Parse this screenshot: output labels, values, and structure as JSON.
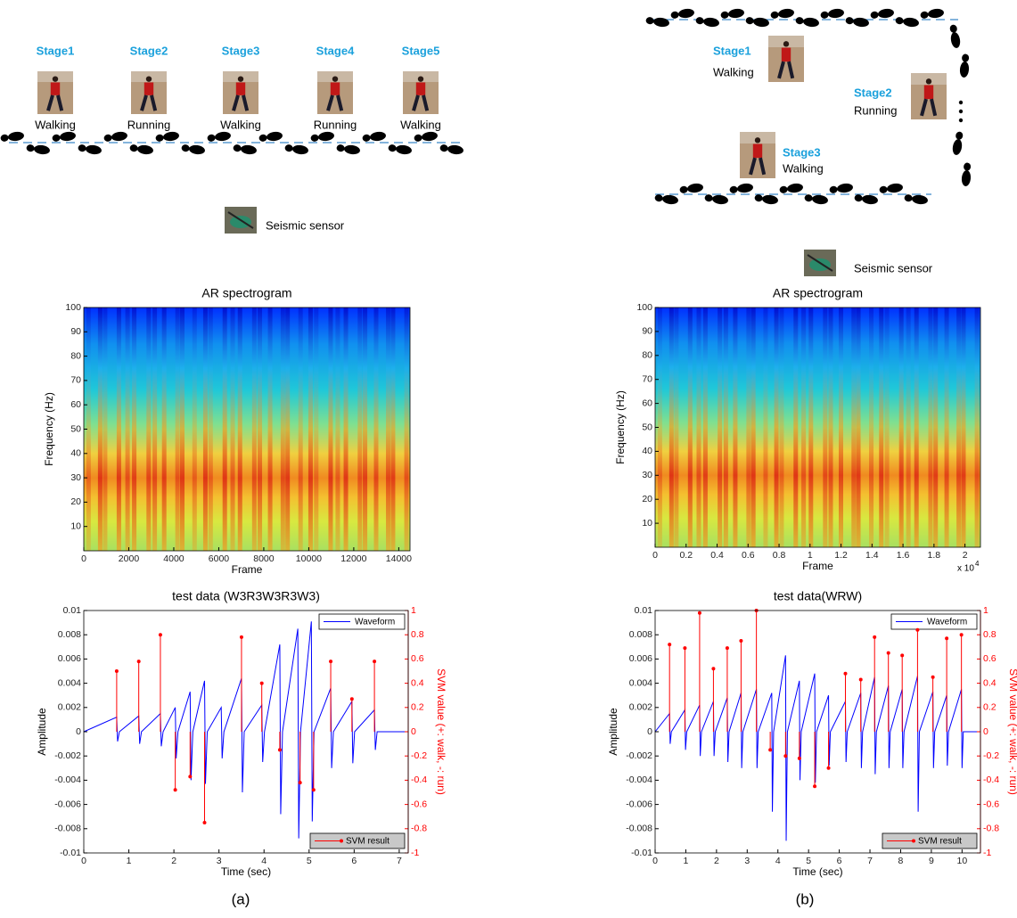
{
  "panels": [
    {
      "caption": "(a)",
      "sensor": "Seismic sensor",
      "stages": [
        {
          "label": "Stage1",
          "activity": "Walking"
        },
        {
          "label": "Stage2",
          "activity": "Running"
        },
        {
          "label": "Stage3",
          "activity": "Walking"
        },
        {
          "label": "Stage4",
          "activity": "Running"
        },
        {
          "label": "Stage5",
          "activity": "Walking"
        }
      ]
    },
    {
      "caption": "(b)",
      "sensor": "Seismic sensor",
      "stages": [
        {
          "label": "Stage1",
          "activity": "Walking"
        },
        {
          "label": "Stage2",
          "activity": "Running"
        },
        {
          "label": "Stage3",
          "activity": "Walking"
        }
      ]
    }
  ],
  "chart_data": [
    {
      "type": "heatmap",
      "title": "AR spectrogram",
      "x_label": "Frame",
      "y_label": "Frequency (Hz)",
      "xlim": [
        0,
        14500
      ],
      "xticks": [
        0,
        2000,
        4000,
        6000,
        8000,
        10000,
        12000,
        14000
      ],
      "ylim": [
        0,
        100
      ],
      "yticks": [
        10,
        20,
        30,
        40,
        50,
        60,
        70,
        80,
        90,
        100
      ]
    },
    {
      "type": "line",
      "title": "test data (W3R3W3R3W3)",
      "x_label": "Time (sec)",
      "y_label": "Amplitude",
      "y2_label": "SVM value (+: walk, -: run)",
      "xlim": [
        0,
        7.2
      ],
      "xticks": [
        0,
        1,
        2,
        3,
        4,
        5,
        6,
        7
      ],
      "ylim": [
        -0.01,
        0.01
      ],
      "yticks": [
        0.01,
        0.008,
        0.006,
        0.004,
        0.002,
        0,
        -0.002,
        -0.004,
        -0.006,
        -0.008,
        -0.01
      ],
      "y2lim": [
        -1,
        1
      ],
      "y2ticks": [
        1,
        0.8,
        0.6,
        0.4,
        0.2,
        0,
        -0.2,
        -0.4,
        -0.6,
        -0.8,
        -1
      ],
      "series": [
        {
          "name": "Waveform",
          "color": "#0000ff",
          "kind": "line",
          "legend": "upper right",
          "x": [
            0,
            0.73,
            0.75,
            0.79,
            1.22,
            1.24,
            1.28,
            1.7,
            1.72,
            1.76,
            2.03,
            2.05,
            2.09,
            2.36,
            2.38,
            2.42,
            2.68,
            2.7,
            2.74,
            3.05,
            3.07,
            3.11,
            3.5,
            3.52,
            3.56,
            3.95,
            3.97,
            4.01,
            4.35,
            4.37,
            4.41,
            4.75,
            4.77,
            4.81,
            5.05,
            5.07,
            5.11,
            5.48,
            5.5,
            5.54,
            5.95,
            5.97,
            6.01,
            6.45,
            6.47,
            6.51,
            7.2
          ],
          "values": [
            0,
            0.0012,
            -0.0008,
            0,
            0.0013,
            -0.001,
            0,
            0.0015,
            -0.0012,
            0,
            0.002,
            -0.0022,
            0,
            0.0033,
            -0.004,
            0,
            0.0042,
            -0.0043,
            0,
            0.002,
            -0.0022,
            0,
            0.0044,
            -0.005,
            0,
            0.0022,
            -0.0025,
            0,
            0.0072,
            -0.0068,
            0,
            0.0085,
            -0.0088,
            0,
            0.0091,
            -0.0074,
            0,
            0.0036,
            -0.003,
            0,
            0.0025,
            -0.0026,
            0,
            0.0018,
            -0.0015,
            0,
            0
          ]
        },
        {
          "name": "SVM result",
          "color": "#ff0000",
          "kind": "stem",
          "axis": "y2",
          "legend": "lower right",
          "x": [
            0.73,
            1.22,
            1.7,
            2.03,
            2.36,
            2.68,
            3.5,
            3.95,
            4.35,
            4.8,
            5.1,
            5.48,
            5.95,
            6.45
          ],
          "values": [
            0.5,
            0.58,
            0.8,
            -0.48,
            -0.37,
            -0.75,
            0.78,
            0.4,
            -0.15,
            -0.42,
            -0.48,
            0.58,
            0.27,
            0.58
          ]
        }
      ]
    },
    {
      "type": "heatmap",
      "title": "AR spectrogram",
      "x_label": "Frame",
      "y_label": "Frequency (Hz)",
      "x_multiplier": "x 10",
      "x_multiplier_exponent": "4",
      "xlim": [
        0,
        2.1
      ],
      "xticks": [
        0,
        0.2,
        0.4,
        0.6,
        0.8,
        1,
        1.2,
        1.4,
        1.6,
        1.8,
        2
      ],
      "ylim": [
        0,
        100
      ],
      "yticks": [
        10,
        20,
        30,
        40,
        50,
        60,
        70,
        80,
        90,
        100
      ]
    },
    {
      "type": "line",
      "title": "test data(WRW)",
      "x_label": "Time (sec)",
      "y_label": "Amplitude",
      "y2_label": "SVM value (+: walk, -: run)",
      "xlim": [
        0,
        10.6
      ],
      "xticks": [
        0,
        1,
        2,
        3,
        4,
        5,
        6,
        7,
        8,
        9,
        10
      ],
      "ylim": [
        -0.01,
        0.01
      ],
      "yticks": [
        0.01,
        0.008,
        0.006,
        0.004,
        0.002,
        0,
        -0.002,
        -0.004,
        -0.006,
        -0.008,
        -0.01
      ],
      "y2lim": [
        -1,
        1
      ],
      "y2ticks": [
        1,
        0.8,
        0.6,
        0.4,
        0.2,
        0,
        -0.2,
        -0.4,
        -0.6,
        -0.8,
        -1
      ],
      "series": [
        {
          "name": "Waveform",
          "color": "#0000ff",
          "kind": "line",
          "legend": "upper right",
          "x": [
            0,
            0.47,
            0.49,
            0.53,
            0.97,
            0.99,
            1.03,
            1.45,
            1.47,
            1.51,
            1.9,
            1.92,
            1.96,
            2.35,
            2.37,
            2.41,
            2.8,
            2.82,
            2.86,
            3.3,
            3.32,
            3.36,
            3.8,
            3.82,
            3.86,
            4.25,
            4.27,
            4.31,
            4.7,
            4.72,
            4.76,
            5.2,
            5.22,
            5.26,
            5.65,
            5.67,
            5.71,
            6.2,
            6.22,
            6.26,
            6.7,
            6.72,
            6.76,
            7.15,
            7.17,
            7.21,
            7.6,
            7.62,
            7.66,
            8.05,
            8.07,
            8.11,
            8.55,
            8.57,
            8.61,
            9.05,
            9.07,
            9.11,
            9.5,
            9.52,
            9.56,
            9.98,
            10,
            10.04,
            10.6
          ],
          "values": [
            0,
            0.0015,
            -0.001,
            0,
            0.0018,
            -0.0015,
            0,
            0.0022,
            -0.002,
            0,
            0.0025,
            -0.002,
            0,
            0.0028,
            -0.0025,
            0,
            0.0032,
            -0.003,
            0,
            0.0035,
            -0.003,
            0,
            0.0032,
            -0.0066,
            0,
            0.0063,
            -0.009,
            0,
            0.0042,
            -0.004,
            0,
            0.0048,
            -0.0042,
            0,
            0.003,
            -0.0028,
            0,
            0.0025,
            -0.0025,
            0,
            0.0032,
            -0.003,
            0,
            0.0045,
            -0.0035,
            0,
            0.0038,
            -0.003,
            0,
            0.0035,
            -0.003,
            0,
            0.0046,
            -0.0066,
            0,
            0.0033,
            -0.003,
            0,
            0.003,
            -0.0028,
            0,
            0.0035,
            -0.003,
            0,
            0
          ]
        },
        {
          "name": "SVM result",
          "color": "#ff0000",
          "kind": "stem",
          "axis": "y2",
          "legend": "lower right",
          "x": [
            0.47,
            0.97,
            1.45,
            1.9,
            2.35,
            2.8,
            3.3,
            3.75,
            4.25,
            4.7,
            5.2,
            5.65,
            6.2,
            6.7,
            7.15,
            7.6,
            8.05,
            8.55,
            9.05,
            9.5,
            9.98
          ],
          "values": [
            0.72,
            0.69,
            0.98,
            0.52,
            0.69,
            0.75,
            1,
            -0.15,
            -0.2,
            -0.22,
            -0.45,
            -0.3,
            0.48,
            0.43,
            0.78,
            0.65,
            0.63,
            0.84,
            0.45,
            0.77,
            0.8
          ]
        }
      ]
    }
  ]
}
